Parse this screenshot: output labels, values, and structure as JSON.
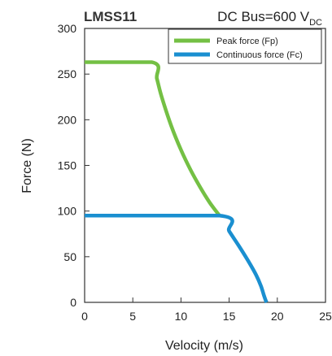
{
  "chart_data": {
    "type": "line",
    "title": "LMSS11",
    "subtitle_main": "DC Bus=600 V",
    "subtitle_sub": "DC",
    "xlabel": "Velocity (m/s)",
    "ylabel": "Force (N)",
    "xlim": [
      0,
      25
    ],
    "ylim": [
      0,
      300
    ],
    "xticks": [
      "0",
      "5",
      "10",
      "15",
      "20",
      "25"
    ],
    "yticks": [
      "0",
      "50",
      "100",
      "150",
      "200",
      "250",
      "300"
    ],
    "grid": false,
    "legend_position": "top-right",
    "series": [
      {
        "name": "Peak force (Fp)",
        "color": "#74c044",
        "x": [
          0,
          7.0,
          7.5,
          8.0,
          9.0,
          10.0,
          11.0,
          12.0,
          13.0,
          14.0
        ],
        "y": [
          263,
          263,
          245,
          225,
          193,
          167,
          145,
          126,
          109,
          95
        ]
      },
      {
        "name": "Continuous force (Fc)",
        "color": "#1a8fd0",
        "x": [
          0,
          14.0,
          15.0,
          16.0,
          17.0,
          17.8,
          18.3,
          18.6,
          18.8,
          18.9
        ],
        "y": [
          95,
          95,
          78,
          62,
          45,
          30,
          18,
          8,
          2,
          0
        ]
      }
    ]
  }
}
